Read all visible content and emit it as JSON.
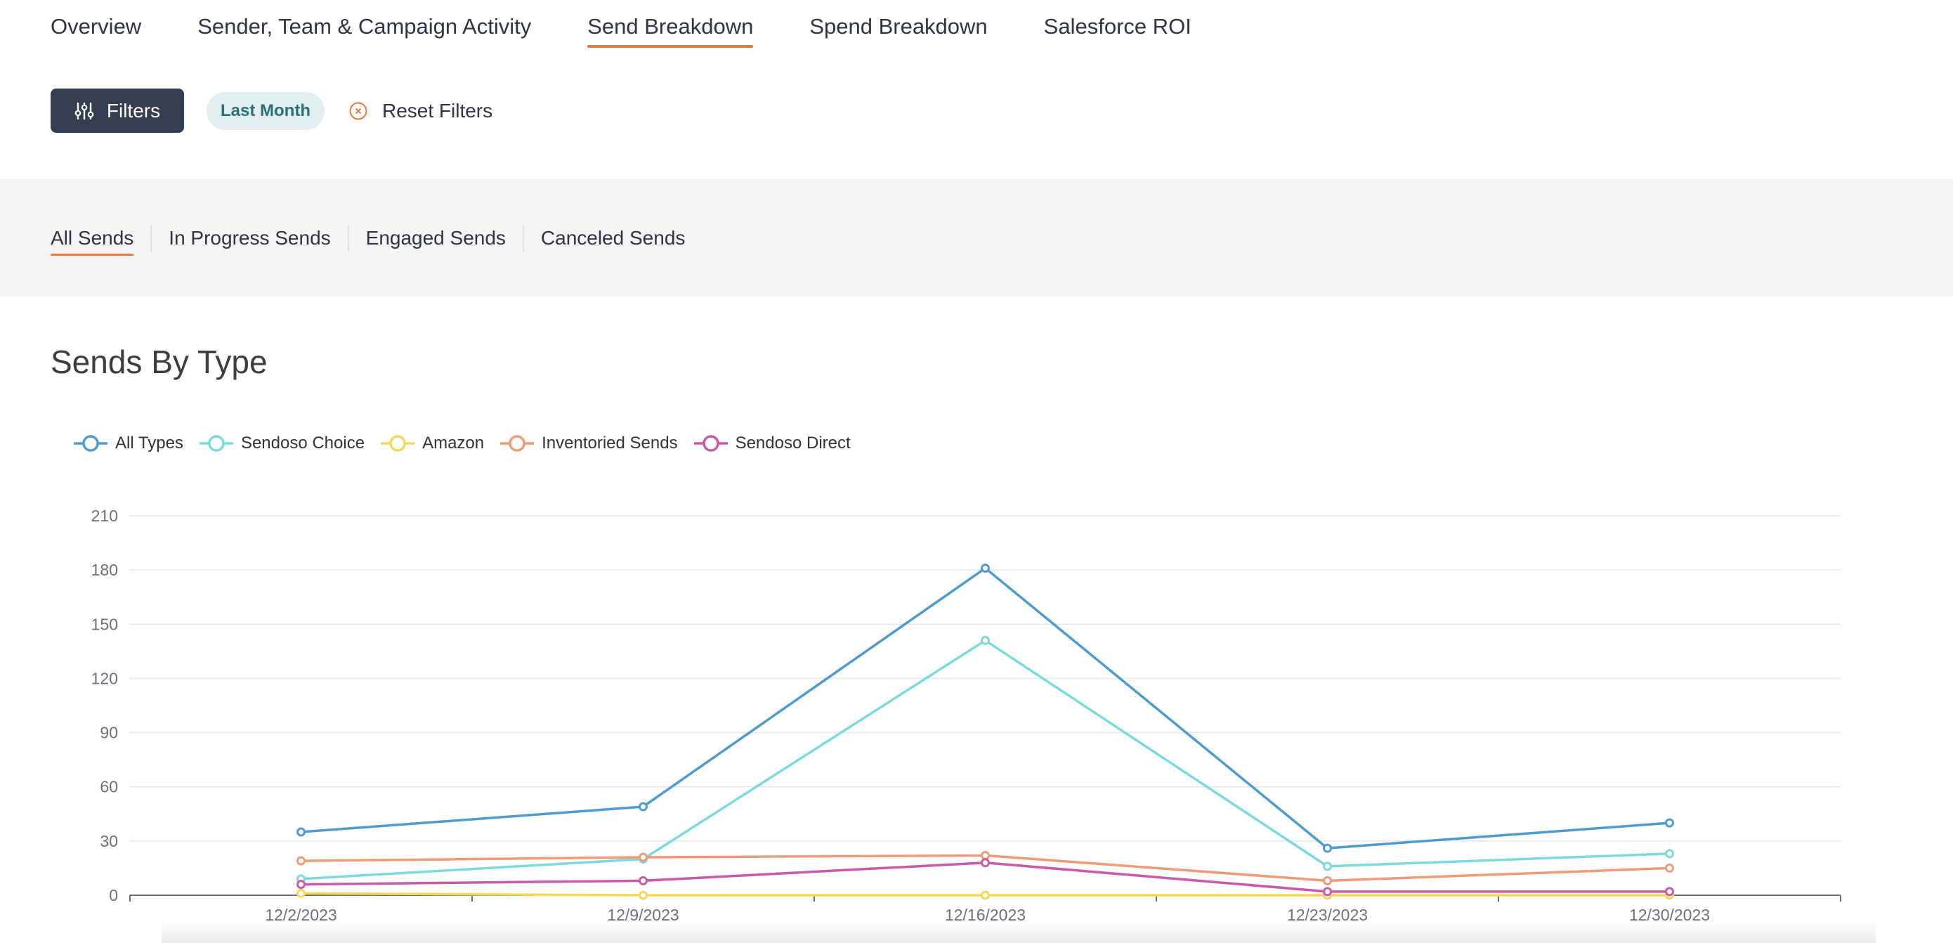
{
  "nav": {
    "tabs": [
      {
        "label": "Overview"
      },
      {
        "label": "Sender, Team & Campaign Activity"
      },
      {
        "label": "Send Breakdown"
      },
      {
        "label": "Spend Breakdown"
      },
      {
        "label": "Salesforce ROI"
      }
    ],
    "active": "Send Breakdown"
  },
  "filters": {
    "button_label": "Filters",
    "chip_label": "Last Month",
    "reset_label": "Reset Filters"
  },
  "subtabs": {
    "items": [
      {
        "label": "All Sends"
      },
      {
        "label": "In Progress Sends"
      },
      {
        "label": "Engaged Sends"
      },
      {
        "label": "Canceled Sends"
      }
    ],
    "active": "All Sends"
  },
  "colors": {
    "accent": "#e8793f",
    "filters_button": "#353d51",
    "chip_bg": "#e1eff0",
    "chip_text": "#2b6f78"
  },
  "chart_data": {
    "type": "line",
    "title": "Sends By Type",
    "xlabel": "",
    "ylabel": "",
    "categories": [
      "12/2/2023",
      "12/9/2023",
      "12/16/2023",
      "12/23/2023",
      "12/30/2023"
    ],
    "yticks": [
      "0",
      "30",
      "60",
      "90",
      "120",
      "150",
      "180",
      "210"
    ],
    "ylim": [
      0,
      210
    ],
    "grid": true,
    "legend_position": "top-left",
    "series": [
      {
        "name": "All Types",
        "color": "#4f9bd1",
        "values": [
          35,
          49,
          181,
          26,
          40
        ]
      },
      {
        "name": "Sendoso Choice",
        "color": "#7ddadb",
        "values": [
          9,
          20,
          141,
          16,
          23
        ]
      },
      {
        "name": "Amazon",
        "color": "#f5d75a",
        "values": [
          1,
          0,
          0,
          0,
          0
        ]
      },
      {
        "name": "Inventoried Sends",
        "color": "#ef9b78",
        "values": [
          19,
          21,
          22,
          8,
          15
        ]
      },
      {
        "name": "Sendoso Direct",
        "color": "#c95aa8",
        "values": [
          6,
          8,
          18,
          2,
          2
        ]
      }
    ]
  }
}
